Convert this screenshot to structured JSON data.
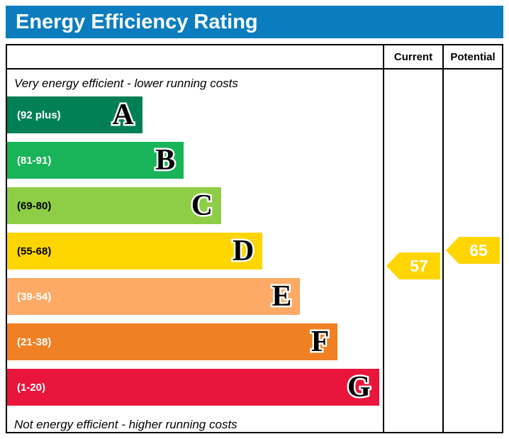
{
  "title": "Energy Efficiency Rating",
  "header": {
    "current": "Current",
    "potential": "Potential"
  },
  "notes": {
    "top": "Very energy efficient - lower running costs",
    "bottom": "Not energy efficient - higher running costs"
  },
  "colors": {
    "title_bar": "#0b7dbe"
  },
  "chart_data": {
    "type": "bar",
    "title": "Energy Efficiency Rating",
    "bands": [
      {
        "letter": "A",
        "range": "(92 plus)",
        "color": "#008054",
        "text_color": "#ffffff",
        "width_pct": 36
      },
      {
        "letter": "B",
        "range": "(81-91)",
        "color": "#19b459",
        "text_color": "#ffffff",
        "width_pct": 47
      },
      {
        "letter": "C",
        "range": "(69-80)",
        "color": "#8dce46",
        "text_color": "#000000",
        "width_pct": 57
      },
      {
        "letter": "D",
        "range": "(55-68)",
        "color": "#ffd500",
        "text_color": "#000000",
        "width_pct": 68
      },
      {
        "letter": "E",
        "range": "(39-54)",
        "color": "#fcaa65",
        "text_color": "#ffffff",
        "width_pct": 78
      },
      {
        "letter": "F",
        "range": "(21-38)",
        "color": "#ef8023",
        "text_color": "#ffffff",
        "width_pct": 88
      },
      {
        "letter": "G",
        "range": "(1-20)",
        "color": "#e9153b",
        "text_color": "#ffffff",
        "width_pct": 99
      }
    ],
    "current": {
      "value": 57,
      "band": "D",
      "color": "#ffd500",
      "text_color": "#ffffff"
    },
    "potential": {
      "value": 65,
      "band": "D",
      "color": "#ffd500",
      "text_color": "#ffffff"
    }
  }
}
